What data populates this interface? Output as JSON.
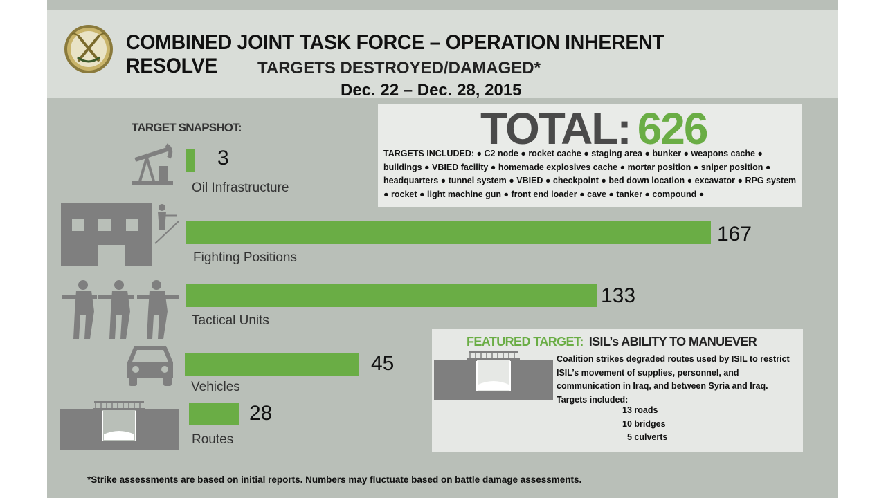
{
  "header": {
    "title": "COMBINED JOINT TASK FORCE – OPERATION INHERENT RESOLVE",
    "subtitle": "TARGETS DESTROYED/DAMAGED*",
    "dates": "Dec. 22 – Dec. 28, 2015"
  },
  "snapshot_label": "TARGET SNAPSHOT:",
  "total": {
    "label": "TOTAL:",
    "value": "626",
    "targets_included": "TARGETS INCLUDED: ● C2 node ● rocket cache ● staging area ● bunker ● weapons cache ● buildings ● VBIED facility ● homemade explosives cache ● mortar position ● sniper position ● headquarters ● tunnel system ● VBIED ● checkpoint ● bed down location ● excavator ● RPG system ● rocket ● light machine gun ● front end loader ● cave ● tanker ● compound ●"
  },
  "chart_data": {
    "type": "bar",
    "orientation": "horizontal",
    "categories": [
      "Oil Infrastructure",
      "Fighting Positions",
      "Tactical Units",
      "Vehicles",
      "Routes"
    ],
    "values": [
      3,
      167,
      133,
      45,
      28
    ],
    "title": "TARGETS DESTROYED/DAMAGED*",
    "xlabel": "",
    "ylabel": "",
    "grid": false,
    "bar_color": "#6aad45",
    "icons": [
      "oil-pump-icon",
      "building-soldier-icon",
      "soldiers-icon",
      "car-icon",
      "bridge-icon"
    ]
  },
  "featured": {
    "label": "FEATURED TARGET:",
    "title": "ISIL’s ABILITY TO MANUEVER",
    "text": "Coalition strikes degraded routes used by ISIL to restrict ISIL’s movement of supplies, personnel, and communication in Iraq, and between Syria and Iraq. Targets included:",
    "items": [
      "13 roads",
      "10 bridges",
      "5 culverts"
    ]
  },
  "footnote": "*Strike assessments are based on initial reports. Numbers may fluctuate based on battle damage assessments.",
  "colors": {
    "accent": "#6aad45",
    "background": "#b9bfb8",
    "header": "#d9ddd8",
    "icon_gray": "#7f7f7f"
  }
}
